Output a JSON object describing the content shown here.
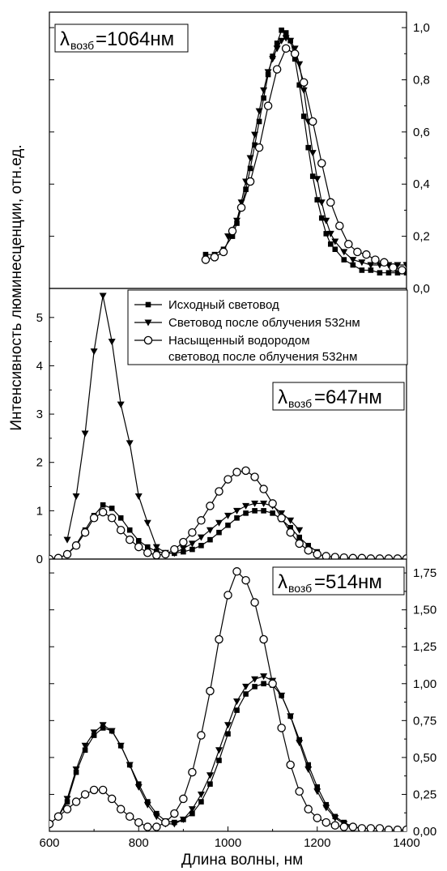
{
  "figure": {
    "xlabel": "Длина волны, нм",
    "ylabel": "Интенсивность люминесценции, отн.ед."
  },
  "legend": [
    {
      "label": "Исходный световод",
      "marker": "square"
    },
    {
      "label": "Световод после облучения 532нм",
      "marker": "triangle-down"
    },
    {
      "label": "Насыщенный водородом",
      "label2": "световод после облучения 532нм",
      "marker": "circle-open"
    }
  ],
  "chart_data": [
    {
      "type": "line",
      "panel": "top",
      "annotation": {
        "lambda": "λ",
        "sub": "возб",
        "value": "=1064нм"
      },
      "xlim": [
        600,
        1400
      ],
      "ylim": [
        0,
        1.05
      ],
      "yaxis_side": "right",
      "yticks": [
        0,
        0.2,
        0.4,
        0.6,
        0.8,
        1.0
      ],
      "ytick_labels": [
        "0,0",
        "0,2",
        "0,4",
        "0,6",
        "0,8",
        "1,0"
      ],
      "series": [
        {
          "name": "Исходный световод",
          "marker": "square",
          "x": [
            950,
            970,
            990,
            1010,
            1020,
            1030,
            1040,
            1050,
            1060,
            1070,
            1080,
            1090,
            1100,
            1110,
            1120,
            1130,
            1140,
            1150,
            1160,
            1170,
            1180,
            1190,
            1200,
            1210,
            1220,
            1230,
            1240,
            1260,
            1280,
            1300,
            1320,
            1340,
            1360,
            1380,
            1400
          ],
          "y": [
            0.13,
            0.13,
            0.15,
            0.2,
            0.25,
            0.31,
            0.38,
            0.46,
            0.55,
            0.64,
            0.73,
            0.82,
            0.89,
            0.94,
            0.99,
            0.98,
            0.95,
            0.88,
            0.78,
            0.66,
            0.54,
            0.43,
            0.34,
            0.27,
            0.21,
            0.17,
            0.15,
            0.11,
            0.09,
            0.07,
            0.07,
            0.06,
            0.06,
            0.06,
            0.06
          ]
        },
        {
          "name": "Световод после облучения 532нм",
          "marker": "triangle-down",
          "x": [
            1000,
            1020,
            1030,
            1040,
            1050,
            1060,
            1070,
            1080,
            1090,
            1100,
            1110,
            1120,
            1130,
            1140,
            1150,
            1160,
            1170,
            1180,
            1190,
            1200,
            1210,
            1220,
            1230,
            1240,
            1260,
            1280,
            1300,
            1320,
            1340,
            1360,
            1380,
            1400
          ],
          "y": [
            0.2,
            0.26,
            0.33,
            0.41,
            0.5,
            0.59,
            0.68,
            0.76,
            0.83,
            0.88,
            0.92,
            0.95,
            0.96,
            0.95,
            0.92,
            0.86,
            0.76,
            0.64,
            0.52,
            0.42,
            0.33,
            0.26,
            0.21,
            0.18,
            0.14,
            0.11,
            0.1,
            0.09,
            0.09,
            0.09,
            0.09,
            0.09
          ]
        },
        {
          "name": "Насыщенный водородом световод после облучения 532нм",
          "marker": "circle-open",
          "x": [
            950,
            970,
            990,
            1010,
            1030,
            1050,
            1070,
            1090,
            1110,
            1130,
            1150,
            1170,
            1190,
            1210,
            1230,
            1250,
            1270,
            1290,
            1310,
            1330,
            1350,
            1370,
            1390
          ],
          "y": [
            0.11,
            0.12,
            0.14,
            0.22,
            0.31,
            0.41,
            0.54,
            0.7,
            0.84,
            0.92,
            0.9,
            0.79,
            0.64,
            0.48,
            0.33,
            0.24,
            0.17,
            0.14,
            0.13,
            0.11,
            0.1,
            0.08,
            0.07
          ]
        }
      ]
    },
    {
      "type": "line",
      "panel": "middle",
      "annotation": {
        "lambda": "λ",
        "sub": "возб",
        "value": "=647нм"
      },
      "xlim": [
        600,
        1400
      ],
      "ylim": [
        0,
        5.5
      ],
      "yaxis_side": "left",
      "yticks": [
        0,
        1,
        2,
        3,
        4,
        5
      ],
      "ytick_labels": [
        "0",
        "1",
        "2",
        "3",
        "4",
        "5"
      ],
      "series": [
        {
          "name": "Исходный световод",
          "marker": "square",
          "x": [
            600,
            620,
            640,
            660,
            680,
            700,
            720,
            740,
            760,
            780,
            800,
            820,
            840,
            860,
            880,
            900,
            920,
            940,
            960,
            980,
            1000,
            1020,
            1040,
            1060,
            1080,
            1100,
            1120,
            1140,
            1160,
            1180,
            1200
          ],
          "y": [
            0,
            0.02,
            0.1,
            0.3,
            0.6,
            0.9,
            1.12,
            1.05,
            0.85,
            0.6,
            0.38,
            0.25,
            0.16,
            0.12,
            0.12,
            0.15,
            0.2,
            0.28,
            0.4,
            0.55,
            0.7,
            0.85,
            0.95,
            1.0,
            1.0,
            0.95,
            0.82,
            0.65,
            0.45,
            0.28,
            0.15
          ]
        },
        {
          "name": "Световод после облучения 532нм",
          "marker": "triangle-down",
          "x": [
            640,
            660,
            680,
            700,
            720,
            740,
            760,
            780,
            800,
            820,
            840,
            860,
            880,
            900,
            920,
            940,
            960,
            980,
            1000,
            1020,
            1040,
            1060,
            1080,
            1100,
            1120,
            1140,
            1160
          ],
          "y": [
            0.4,
            1.3,
            2.6,
            4.3,
            5.45,
            4.5,
            3.2,
            2.4,
            1.3,
            0.75,
            0.25,
            0.13,
            0.12,
            0.22,
            0.32,
            0.45,
            0.6,
            0.75,
            0.9,
            1.0,
            1.1,
            1.15,
            1.15,
            1.1,
            0.95,
            0.8,
            0.6
          ]
        },
        {
          "name": "Насыщенный водородом световод после облучения 532нм",
          "marker": "circle-open",
          "x": [
            600,
            620,
            640,
            660,
            680,
            700,
            720,
            740,
            760,
            780,
            800,
            820,
            840,
            860,
            880,
            900,
            920,
            940,
            960,
            980,
            1000,
            1020,
            1040,
            1060,
            1080,
            1100,
            1120,
            1140,
            1160,
            1180,
            1200,
            1220,
            1240,
            1260,
            1280,
            1300,
            1320,
            1340,
            1360,
            1380,
            1400
          ],
          "y": [
            0,
            0.02,
            0.1,
            0.28,
            0.55,
            0.85,
            0.97,
            0.85,
            0.6,
            0.4,
            0.25,
            0.13,
            0.08,
            0.1,
            0.2,
            0.35,
            0.55,
            0.8,
            1.1,
            1.4,
            1.65,
            1.8,
            1.83,
            1.7,
            1.45,
            1.15,
            0.85,
            0.55,
            0.32,
            0.18,
            0.1,
            0.06,
            0.04,
            0.03,
            0.02,
            0.02,
            0.01,
            0.01,
            0.01,
            0.01,
            0.01
          ]
        }
      ]
    },
    {
      "type": "line",
      "panel": "bottom",
      "annotation": {
        "lambda": "λ",
        "sub": "возб",
        "value": "=514нм"
      },
      "xlim": [
        600,
        1400
      ],
      "ylim": [
        0,
        1.8
      ],
      "yaxis_side": "right",
      "yticks": [
        0,
        0.25,
        0.5,
        0.75,
        1.0,
        1.25,
        1.5,
        1.75
      ],
      "ytick_labels": [
        "0,00",
        "0,25",
        "0,50",
        "0,75",
        "1,00",
        "1,25",
        "1,50",
        "1,75"
      ],
      "xticks": [
        600,
        800,
        1000,
        1200,
        1400
      ],
      "xtick_labels": [
        "600",
        "800",
        "1000",
        "1200",
        "1400"
      ],
      "series": [
        {
          "name": "Исходный световод",
          "marker": "square",
          "x": [
            620,
            640,
            660,
            680,
            700,
            720,
            740,
            760,
            780,
            800,
            820,
            840,
            860,
            880,
            900,
            920,
            940,
            960,
            980,
            1000,
            1020,
            1040,
            1060,
            1080,
            1100,
            1120,
            1140,
            1160,
            1180,
            1200,
            1220,
            1240,
            1260,
            1280
          ],
          "y": [
            0.1,
            0.2,
            0.4,
            0.55,
            0.65,
            0.7,
            0.68,
            0.58,
            0.45,
            0.32,
            0.2,
            0.12,
            0.07,
            0.06,
            0.08,
            0.12,
            0.2,
            0.32,
            0.48,
            0.66,
            0.82,
            0.93,
            0.98,
            1.0,
            0.99,
            0.92,
            0.78,
            0.62,
            0.45,
            0.3,
            0.18,
            0.1,
            0.06,
            0.03
          ]
        },
        {
          "name": "Световод после облучения 532нм",
          "marker": "triangle-down",
          "x": [
            620,
            640,
            660,
            680,
            700,
            720,
            740,
            760,
            780,
            800,
            820,
            840,
            860,
            880,
            900,
            920,
            940,
            960,
            980,
            1000,
            1020,
            1040,
            1060,
            1080,
            1100,
            1120,
            1140,
            1160,
            1180,
            1200,
            1220,
            1240,
            1260,
            1280
          ],
          "y": [
            0.1,
            0.22,
            0.42,
            0.58,
            0.67,
            0.72,
            0.68,
            0.58,
            0.45,
            0.3,
            0.18,
            0.1,
            0.05,
            0.05,
            0.08,
            0.15,
            0.25,
            0.38,
            0.55,
            0.72,
            0.88,
            0.98,
            1.03,
            1.05,
            1.02,
            0.92,
            0.78,
            0.6,
            0.42,
            0.27,
            0.16,
            0.09,
            0.05,
            0.03
          ]
        },
        {
          "name": "Насыщенный водородом световод после облучения 532нм",
          "marker": "circle-open",
          "x": [
            600,
            620,
            640,
            660,
            680,
            700,
            720,
            740,
            760,
            780,
            800,
            820,
            840,
            860,
            880,
            900,
            920,
            940,
            960,
            980,
            1000,
            1020,
            1040,
            1060,
            1080,
            1100,
            1120,
            1140,
            1160,
            1180,
            1200,
            1220,
            1240,
            1260,
            1280,
            1300,
            1320,
            1340,
            1360,
            1380,
            1400
          ],
          "y": [
            0.05,
            0.1,
            0.15,
            0.2,
            0.25,
            0.28,
            0.28,
            0.22,
            0.15,
            0.1,
            0.06,
            0.03,
            0.03,
            0.06,
            0.12,
            0.22,
            0.4,
            0.65,
            0.95,
            1.3,
            1.6,
            1.76,
            1.7,
            1.55,
            1.3,
            1.0,
            0.7,
            0.45,
            0.27,
            0.15,
            0.09,
            0.06,
            0.04,
            0.03,
            0.03,
            0.02,
            0.02,
            0.02,
            0.01,
            0.01,
            0.01
          ]
        }
      ]
    }
  ]
}
